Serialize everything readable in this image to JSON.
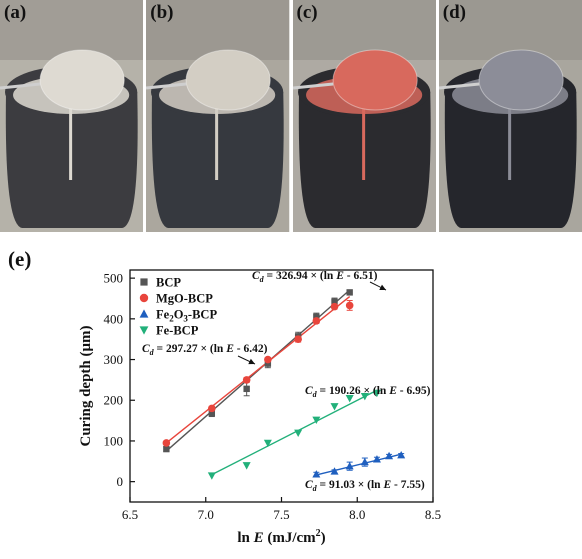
{
  "panels": [
    {
      "label": "(a)",
      "slurry_color": "#dedad2",
      "container_color": "#3c3c40",
      "background_color": "#b5b2a9"
    },
    {
      "label": "(b)",
      "slurry_color": "#d3cec4",
      "container_color": "#36393f",
      "background_color": "#aba79e"
    },
    {
      "label": "(c)",
      "slurry_color": "#d8695d",
      "container_color": "#2b2b2f",
      "background_color": "#aeaaa3"
    },
    {
      "label": "(d)",
      "slurry_color": "#8c8d98",
      "container_color": "#25262c",
      "background_color": "#a9a69e"
    }
  ],
  "chart_label": "(e)",
  "chart_data": {
    "type": "scatter",
    "title": "",
    "xlabel_pre": "ln ",
    "xlabel_var": "E",
    "xlabel_unit": " (mJ/cm",
    "xlabel_sup": "2",
    "xlabel_close": ")",
    "ylabel": "Curing depth (μm)",
    "xlim": [
      6.5,
      8.5
    ],
    "ylim": [
      -50,
      520
    ],
    "x_ticks": [
      "6.5",
      "7.0",
      "7.5",
      "8.0",
      "8.5"
    ],
    "x_tick_values": [
      6.5,
      7.0,
      7.5,
      8.0,
      8.5
    ],
    "y_ticks": [
      "0",
      "100",
      "200",
      "300",
      "400",
      "500"
    ],
    "y_tick_values": [
      0,
      100,
      200,
      300,
      400,
      500
    ],
    "legend_position": "top-left",
    "grid": false,
    "series": [
      {
        "name": "BCP",
        "marker": "square",
        "color": "#555555",
        "x": [
          6.74,
          7.04,
          7.27,
          7.41,
          7.61,
          7.73,
          7.85,
          7.95
        ],
        "y": [
          80,
          168,
          228,
          290,
          357,
          405,
          442,
          465
        ],
        "err": [
          5,
          8,
          17,
          10,
          10,
          9,
          9,
          0
        ],
        "fit": {
          "slope": 326.94,
          "intercept_x": 6.51,
          "x_range": [
            6.74,
            7.95
          ]
        }
      },
      {
        "name": "MgO-BCP",
        "marker": "circle",
        "color": "#e8453c",
        "x": [
          6.74,
          7.04,
          7.27,
          7.41,
          7.61,
          7.73,
          7.85,
          7.95
        ],
        "y": [
          95,
          180,
          250,
          300,
          350,
          395,
          430,
          433
        ],
        "err": [
          4,
          5,
          6,
          5,
          7,
          6,
          6,
          12
        ],
        "fit": {
          "slope": 297.27,
          "intercept_x": 6.42,
          "x_range": [
            6.74,
            7.95
          ]
        }
      },
      {
        "name": "Fe2O3-BCP",
        "name_base": "Fe",
        "name_sub1": "2",
        "name_mid": "O",
        "name_sub2": "3",
        "name_tail": "-BCP",
        "marker": "triangle-up",
        "color": "#1f5fbf",
        "x": [
          7.73,
          7.85,
          7.95,
          8.05,
          8.13,
          8.21,
          8.29
        ],
        "y": [
          18,
          25,
          38,
          48,
          55,
          63,
          65
        ],
        "err": [
          5,
          4,
          10,
          10,
          5,
          4,
          4
        ],
        "fit": {
          "slope": 91.03,
          "intercept_x": 7.55,
          "x_range": [
            7.73,
            8.29
          ]
        }
      },
      {
        "name": "Fe-BCP",
        "marker": "triangle-down",
        "color": "#22b07a",
        "x": [
          7.04,
          7.27,
          7.41,
          7.61,
          7.73,
          7.85,
          7.95,
          8.05,
          8.13
        ],
        "y": [
          15,
          40,
          95,
          120,
          152,
          185,
          205,
          210,
          218
        ],
        "err": [
          0,
          0,
          0,
          0,
          0,
          0,
          0,
          0,
          0
        ],
        "fit": {
          "slope": 190.26,
          "intercept_x": 6.95,
          "x_range": [
            7.04,
            8.13
          ]
        }
      }
    ],
    "annotations": [
      {
        "series": "BCP",
        "lhs": "C",
        "lhs_sub": "d",
        "eq_pre": " = 326.94 × (ln ",
        "eq_var": "E",
        "eq_post": " - 6.51)",
        "arrow": true
      },
      {
        "series": "MgO-BCP",
        "lhs": "C",
        "lhs_sub": "d",
        "eq_pre": " = 297.27 × (ln ",
        "eq_var": "E",
        "eq_post": " - 6.42)",
        "arrow": true
      },
      {
        "series": "Fe-BCP",
        "lhs": "C",
        "lhs_sub": "d",
        "eq_pre": " = 190.26 × (ln ",
        "eq_var": "E",
        "eq_post": " - 6.95)",
        "arrow": false
      },
      {
        "series": "Fe2O3-BCP",
        "lhs": "C",
        "lhs_sub": "d",
        "eq_pre": " = 91.03 × (ln ",
        "eq_var": "E",
        "eq_post": " - 7.55)",
        "arrow": false
      }
    ]
  }
}
